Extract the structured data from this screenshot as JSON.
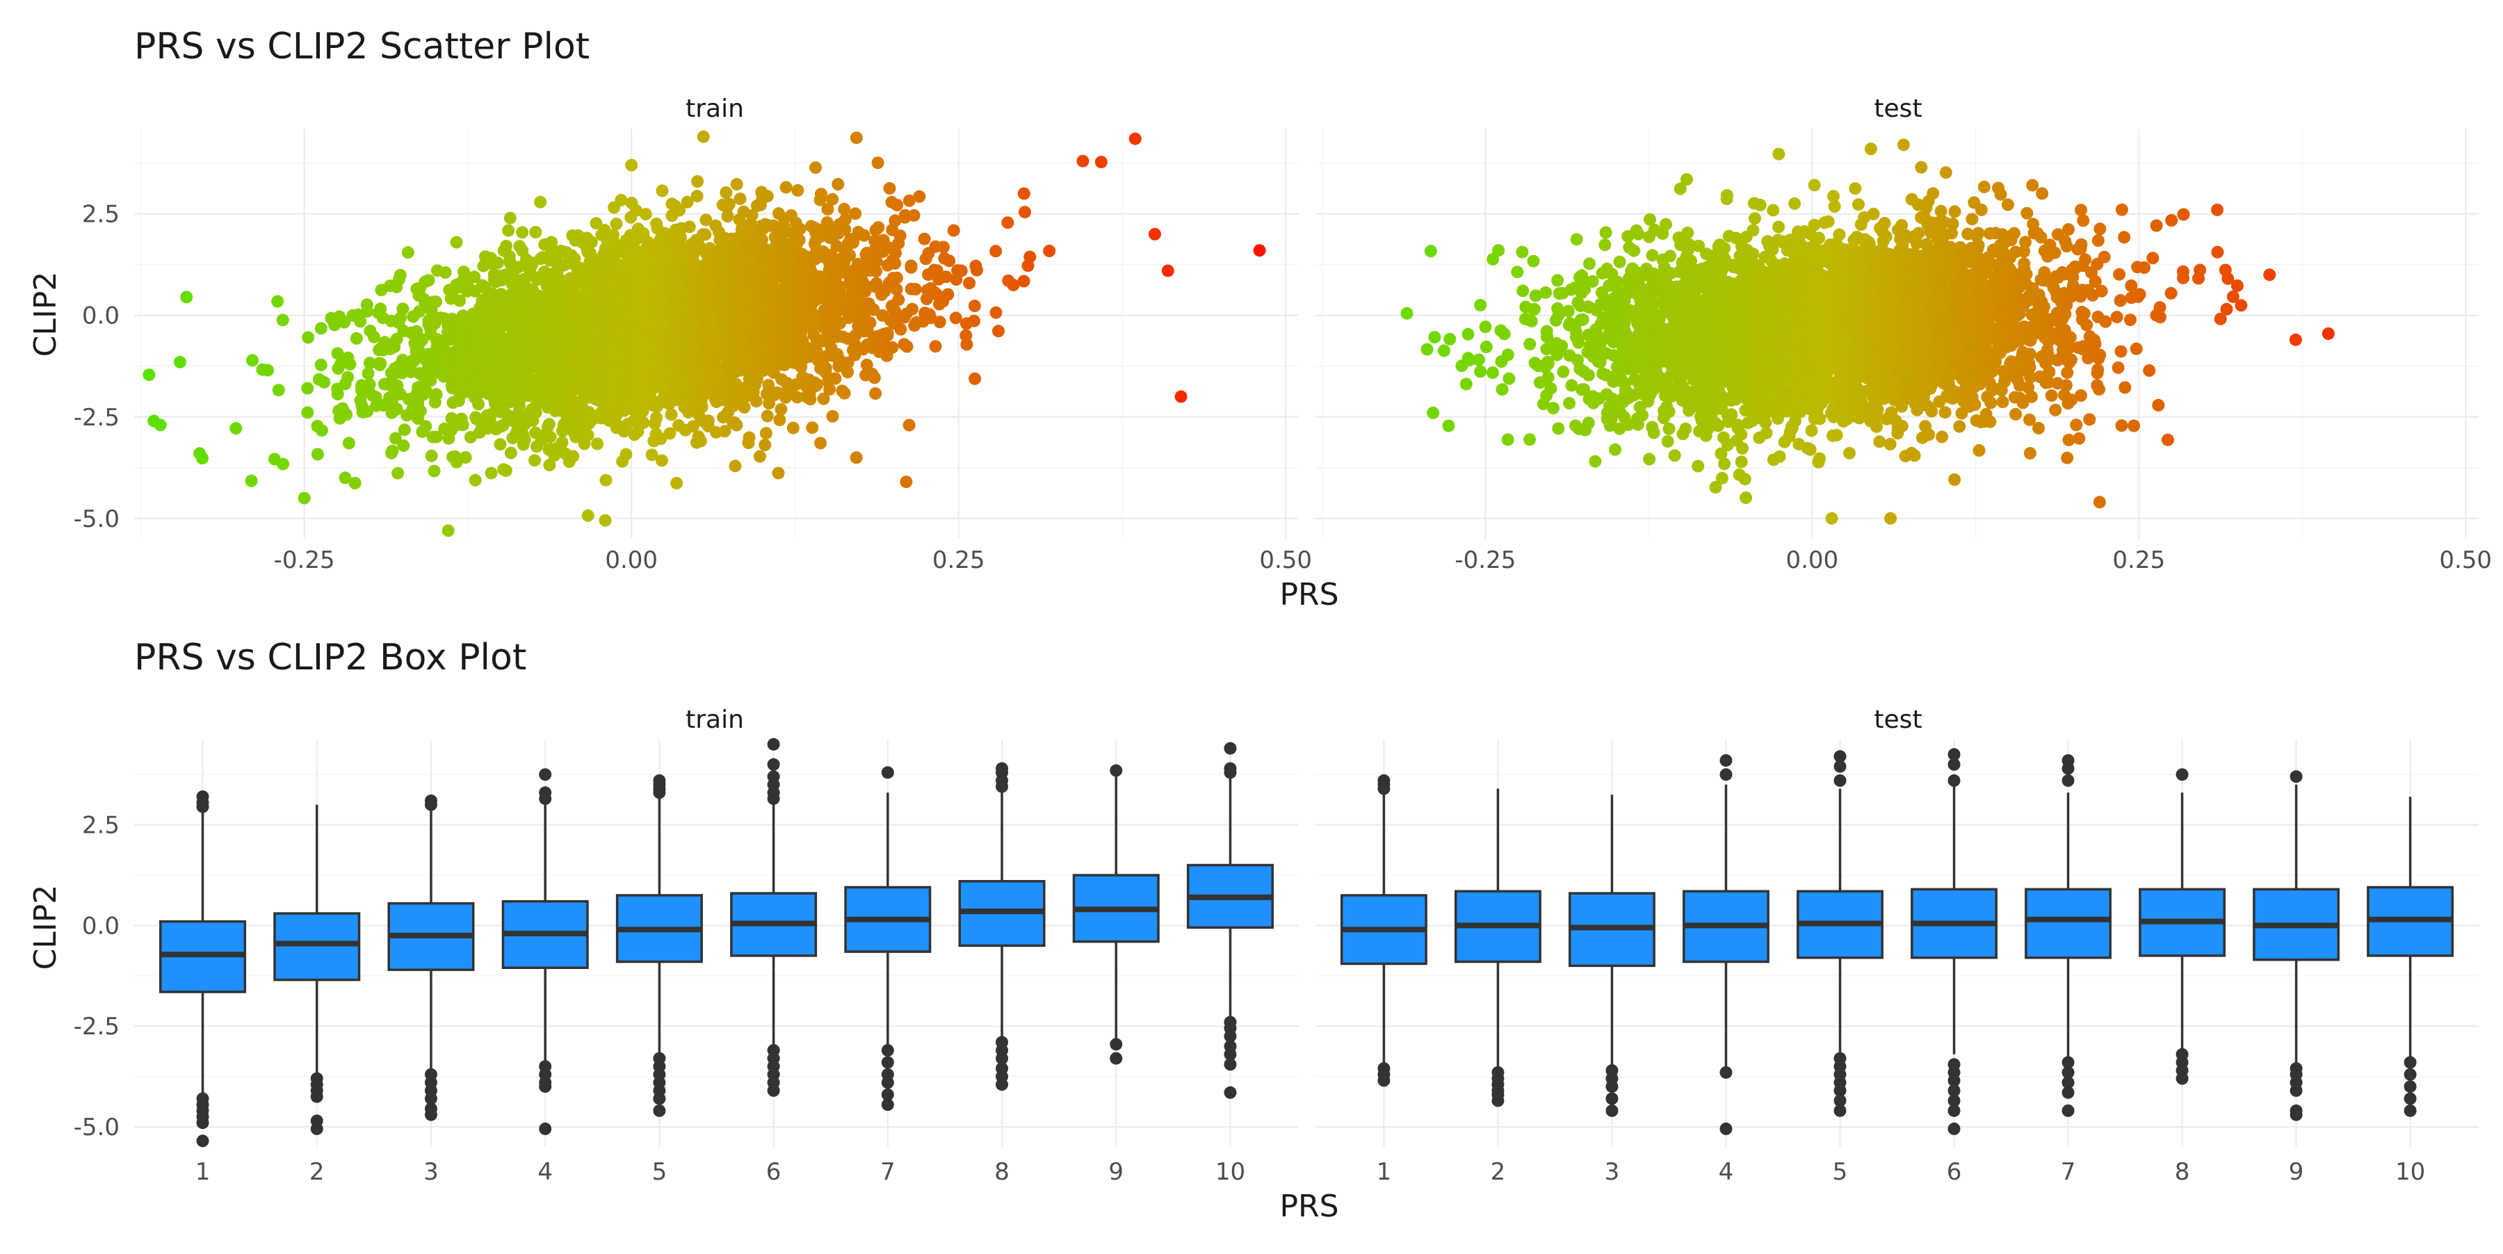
{
  "chart_data": [
    {
      "type": "scatter",
      "title": "PRS vs CLIP2 Scatter Plot",
      "xlabel": "PRS",
      "ylabel": "CLIP2",
      "facets": [
        "train",
        "test"
      ],
      "xlim": [
        -0.38,
        0.51
      ],
      "ylim": [
        -5.5,
        4.6
      ],
      "x_ticks": [
        "-0.25",
        "0.00",
        "0.25",
        "0.50"
      ],
      "y_ticks": [
        "2.5",
        "0.0",
        "-2.5",
        "-5.0"
      ],
      "grid": true,
      "legend": "none",
      "color_scale": {
        "low": "#00ff00",
        "high": "#ff0000",
        "mapped_to": "PRS"
      },
      "panels": [
        {
          "facet": "train",
          "description_of_cloud": "dense elliptical cloud centered near PRS 0.0, CLIP2 -0.3; positive correlation",
          "points_sample": [
            {
              "x": -0.365,
              "y": -2.6
            },
            {
              "x": -0.36,
              "y": -2.7
            },
            {
              "x": -0.34,
              "y": 0.45
            },
            {
              "x": -0.345,
              "y": -1.15
            },
            {
              "x": -0.33,
              "y": -3.4
            },
            {
              "x": -0.25,
              "y": -4.5
            },
            {
              "x": -0.14,
              "y": -5.3
            },
            {
              "x": 0.055,
              "y": 4.4
            },
            {
              "x": 0.385,
              "y": 4.35
            },
            {
              "x": 0.48,
              "y": 1.6
            },
            {
              "x": 0.42,
              "y": -2.0
            },
            {
              "x": 0.345,
              "y": 3.8
            },
            {
              "x": 0.4,
              "y": 2.0
            },
            {
              "x": 0.41,
              "y": 1.1
            },
            {
              "x": 0.21,
              "y": -4.1
            },
            {
              "x": -0.02,
              "y": -5.05
            },
            {
              "x": 0.0,
              "y": 3.7
            },
            {
              "x": 0.3,
              "y": 3.0
            }
          ]
        },
        {
          "facet": "test",
          "description_of_cloud": "dense elliptical cloud centered near PRS 0.02, CLIP2 -0.3; weak positive correlation",
          "points_sample": [
            {
              "x": -0.31,
              "y": 0.05
            },
            {
              "x": -0.29,
              "y": -2.4
            },
            {
              "x": -0.24,
              "y": 1.6
            },
            {
              "x": 0.045,
              "y": 4.1
            },
            {
              "x": 0.07,
              "y": 4.2
            },
            {
              "x": 0.395,
              "y": -0.45
            },
            {
              "x": 0.37,
              "y": -0.6
            },
            {
              "x": 0.35,
              "y": 1.0
            },
            {
              "x": 0.015,
              "y": -5.0
            },
            {
              "x": 0.06,
              "y": -5.0
            },
            {
              "x": 0.22,
              "y": -4.6
            },
            {
              "x": -0.2,
              "y": -1.8
            },
            {
              "x": 0.31,
              "y": 2.6
            }
          ]
        }
      ]
    },
    {
      "type": "box",
      "title": "PRS vs CLIP2 Box Plot",
      "xlabel": "PRS",
      "ylabel": "CLIP2",
      "facets": [
        "train",
        "test"
      ],
      "categories": [
        "1",
        "2",
        "3",
        "4",
        "5",
        "6",
        "7",
        "8",
        "9",
        "10"
      ],
      "ylim": [
        -5.5,
        4.6
      ],
      "y_ticks": [
        "2.5",
        "0.0",
        "-2.5",
        "-5.0"
      ],
      "box_color": "#1e90ff",
      "grid": true,
      "panels": [
        {
          "facet": "train",
          "boxes": [
            {
              "q1": -1.65,
              "median": -0.72,
              "q3": 0.1,
              "lower": -4.25,
              "upper": 2.95,
              "outliers": [
                3.2,
                3.05,
                2.95,
                -4.3,
                -4.45,
                -4.6,
                -4.75,
                -4.9,
                -5.35
              ]
            },
            {
              "q1": -1.35,
              "median": -0.45,
              "q3": 0.3,
              "lower": -3.7,
              "upper": 3.0,
              "outliers": [
                -3.8,
                -3.95,
                -4.1,
                -4.25,
                -4.85,
                -5.05
              ]
            },
            {
              "q1": -1.1,
              "median": -0.25,
              "q3": 0.55,
              "lower": -3.55,
              "upper": 3.0,
              "outliers": [
                3.0,
                3.1,
                -3.7,
                -3.9,
                -4.1,
                -4.3,
                -4.55,
                -4.7
              ]
            },
            {
              "q1": -1.05,
              "median": -0.2,
              "q3": 0.6,
              "lower": -3.4,
              "upper": 3.1,
              "outliers": [
                3.75,
                3.3,
                3.15,
                -3.5,
                -3.7,
                -3.9,
                -4.0,
                -5.05
              ]
            },
            {
              "q1": -0.9,
              "median": -0.1,
              "q3": 0.75,
              "lower": -3.2,
              "upper": 3.2,
              "outliers": [
                3.6,
                3.5,
                3.4,
                3.3,
                -3.3,
                -3.5,
                -3.7,
                -3.9,
                -4.1,
                -4.3,
                -4.6
              ]
            },
            {
              "q1": -0.75,
              "median": 0.05,
              "q3": 0.8,
              "lower": -3.0,
              "upper": 3.1,
              "outliers": [
                4.5,
                4.0,
                3.7,
                3.5,
                3.3,
                3.15,
                -3.1,
                -3.3,
                -3.5,
                -3.7,
                -3.9,
                -4.1
              ]
            },
            {
              "q1": -0.65,
              "median": 0.15,
              "q3": 0.95,
              "lower": -3.0,
              "upper": 3.3,
              "outliers": [
                3.8,
                -3.1,
                -3.4,
                -3.7,
                -3.9,
                -4.2,
                -4.45
              ]
            },
            {
              "q1": -0.5,
              "median": 0.35,
              "q3": 1.1,
              "lower": -2.8,
              "upper": 3.3,
              "outliers": [
                3.9,
                3.8,
                3.6,
                3.45,
                -2.9,
                -3.1,
                -3.3,
                -3.55,
                -3.75,
                -3.95
              ]
            },
            {
              "q1": -0.4,
              "median": 0.4,
              "q3": 1.25,
              "lower": -2.8,
              "upper": 3.8,
              "outliers": [
                3.85,
                -2.95,
                -3.3
              ]
            },
            {
              "q1": -0.05,
              "median": 0.7,
              "q3": 1.5,
              "lower": -2.3,
              "upper": 3.8,
              "outliers": [
                4.4,
                3.9,
                3.8,
                -2.4,
                -2.55,
                -2.75,
                -3.0,
                -3.2,
                -3.45,
                -4.15
              ]
            }
          ]
        },
        {
          "facet": "test",
          "boxes": [
            {
              "q1": -0.95,
              "median": -0.1,
              "q3": 0.75,
              "lower": -3.4,
              "upper": 3.4,
              "outliers": [
                3.6,
                3.5,
                3.4,
                -3.55,
                -3.7,
                -3.85
              ]
            },
            {
              "q1": -0.9,
              "median": 0.0,
              "q3": 0.85,
              "lower": -3.5,
              "upper": 3.4,
              "outliers": [
                -3.65,
                -3.8,
                -3.95,
                -4.1,
                -4.2,
                -4.35
              ]
            },
            {
              "q1": -1.0,
              "median": -0.05,
              "q3": 0.8,
              "lower": -3.5,
              "upper": 3.25,
              "outliers": [
                -3.6,
                -3.8,
                -4.0,
                -4.3,
                -4.6
              ]
            },
            {
              "q1": -0.9,
              "median": 0.0,
              "q3": 0.85,
              "lower": -3.5,
              "upper": 3.5,
              "outliers": [
                4.1,
                3.75,
                -3.65,
                -5.05
              ]
            },
            {
              "q1": -0.8,
              "median": 0.05,
              "q3": 0.85,
              "lower": -3.2,
              "upper": 3.4,
              "outliers": [
                4.2,
                3.95,
                3.6,
                -3.3,
                -3.5,
                -3.7,
                -3.9,
                -4.1,
                -4.35,
                -4.6
              ]
            },
            {
              "q1": -0.8,
              "median": 0.05,
              "q3": 0.9,
              "lower": -3.2,
              "upper": 3.5,
              "outliers": [
                4.25,
                4.0,
                3.6,
                -3.45,
                -3.65,
                -3.85,
                -4.1,
                -4.35,
                -4.6,
                -5.05
              ]
            },
            {
              "q1": -0.8,
              "median": 0.15,
              "q3": 0.9,
              "lower": -3.3,
              "upper": 3.3,
              "outliers": [
                4.1,
                3.9,
                3.6,
                -3.4,
                -3.65,
                -3.9,
                -4.15,
                -4.6
              ]
            },
            {
              "q1": -0.75,
              "median": 0.1,
              "q3": 0.9,
              "lower": -3.1,
              "upper": 3.3,
              "outliers": [
                3.75,
                -3.2,
                -3.4,
                -3.6,
                -3.8
              ]
            },
            {
              "q1": -0.85,
              "median": 0.0,
              "q3": 0.9,
              "lower": -3.4,
              "upper": 3.5,
              "outliers": [
                3.7,
                -3.55,
                -3.7,
                -3.9,
                -4.1,
                -4.6,
                -4.7
              ]
            },
            {
              "q1": -0.75,
              "median": 0.15,
              "q3": 0.95,
              "lower": -3.3,
              "upper": 3.2,
              "outliers": [
                -3.4,
                -3.7,
                -4.0,
                -4.3,
                -4.6
              ]
            }
          ]
        }
      ]
    }
  ]
}
